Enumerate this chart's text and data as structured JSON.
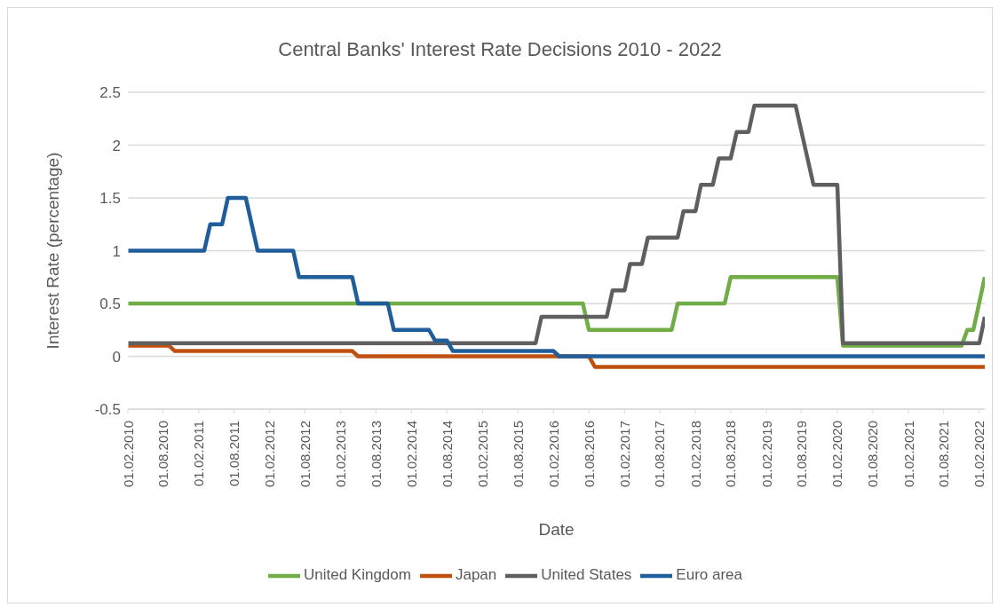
{
  "chart_data": {
    "type": "line",
    "title": "Central Banks' Interest Rate Decisions 2010 - 2022",
    "xlabel": "Date",
    "ylabel": "Interest Rate (percentage)",
    "xlim": [
      "2010-02-01",
      "2022-03-01"
    ],
    "xticks": [
      {
        "value": "2010-02-01",
        "label": "01.02.2010"
      },
      {
        "value": "2010-08-01",
        "label": "01.08.2010"
      },
      {
        "value": "2011-02-01",
        "label": "01.02.2011"
      },
      {
        "value": "2011-08-01",
        "label": "01.08.2011"
      },
      {
        "value": "2012-02-01",
        "label": "01.02.2012"
      },
      {
        "value": "2012-08-01",
        "label": "01.08.2012"
      },
      {
        "value": "2013-02-01",
        "label": "01.02.2013"
      },
      {
        "value": "2013-08-01",
        "label": "01.08.2013"
      },
      {
        "value": "2014-02-01",
        "label": "01.02.2014"
      },
      {
        "value": "2014-08-01",
        "label": "01.08.2014"
      },
      {
        "value": "2015-02-01",
        "label": "01.02.2015"
      },
      {
        "value": "2015-08-01",
        "label": "01.08.2015"
      },
      {
        "value": "2016-02-01",
        "label": "01.02.2016"
      },
      {
        "value": "2016-08-01",
        "label": "01.08.2016"
      },
      {
        "value": "2017-02-01",
        "label": "01.02.2017"
      },
      {
        "value": "2017-08-01",
        "label": "01.08.2017"
      },
      {
        "value": "2018-02-01",
        "label": "01.02.2018"
      },
      {
        "value": "2018-08-01",
        "label": "01.08.2018"
      },
      {
        "value": "2019-02-01",
        "label": "01.02.2019"
      },
      {
        "value": "2019-08-01",
        "label": "01.08.2019"
      },
      {
        "value": "2020-02-01",
        "label": "01.02.2020"
      },
      {
        "value": "2020-08-01",
        "label": "01.08.2020"
      },
      {
        "value": "2021-02-01",
        "label": "01.02.2021"
      },
      {
        "value": "2021-08-01",
        "label": "01.08.2021"
      },
      {
        "value": "2022-02-01",
        "label": "01.02.2022"
      }
    ],
    "ylim": [
      -0.5,
      2.5
    ],
    "yticks": [
      -0.5,
      0,
      0.5,
      1,
      1.5,
      2,
      2.5
    ],
    "grid": "y",
    "legend": "bottom",
    "series": [
      {
        "name": "United Kingdom",
        "color": "#70ad47",
        "x": [
          "2010-02",
          "2016-07",
          "2016-08",
          "2017-10",
          "2017-11",
          "2018-07",
          "2018-08",
          "2020-02",
          "2020-03",
          "2021-11",
          "2021-12",
          "2022-01",
          "2022-03"
        ],
        "values": [
          0.5,
          0.5,
          0.25,
          0.25,
          0.5,
          0.5,
          0.75,
          0.75,
          0.1,
          0.1,
          0.25,
          0.25,
          0.75
        ]
      },
      {
        "name": "Japan",
        "color": "#c0500f",
        "x": [
          "2010-02",
          "2010-09",
          "2010-10",
          "2013-04",
          "2013-05",
          "2016-08",
          "2016-09",
          "2022-03"
        ],
        "values": [
          0.1,
          0.1,
          0.05,
          0.05,
          0,
          0,
          -0.1,
          -0.1
        ]
      },
      {
        "name": "United States",
        "color": "#5f5f5f",
        "x": [
          "2010-02",
          "2015-11",
          "2015-12",
          "2016-11",
          "2016-12",
          "2017-02",
          "2017-03",
          "2017-05",
          "2017-06",
          "2017-11",
          "2017-12",
          "2018-02",
          "2018-03",
          "2018-05",
          "2018-06",
          "2018-08",
          "2018-09",
          "2018-11",
          "2018-12",
          "2019-07",
          "2019-10",
          "2020-02",
          "2020-03",
          "2022-02",
          "2022-03"
        ],
        "values": [
          0.125,
          0.125,
          0.375,
          0.375,
          0.625,
          0.625,
          0.875,
          0.875,
          1.125,
          1.125,
          1.375,
          1.375,
          1.625,
          1.625,
          1.875,
          1.875,
          2.125,
          2.125,
          2.375,
          2.375,
          1.625,
          1.625,
          0.125,
          0.125,
          0.375
        ]
      },
      {
        "name": "Euro area",
        "color": "#1f5e9a",
        "x": [
          "2010-02",
          "2011-03",
          "2011-04",
          "2011-06",
          "2011-07",
          "2011-10",
          "2011-12",
          "2012-06",
          "2012-07",
          "2013-04",
          "2013-05",
          "2013-10",
          "2013-11",
          "2014-05",
          "2014-06",
          "2014-08",
          "2014-09",
          "2016-02",
          "2016-03",
          "2022-03"
        ],
        "values": [
          1,
          1,
          1.25,
          1.25,
          1.5,
          1.5,
          1,
          1,
          0.75,
          0.75,
          0.5,
          0.5,
          0.25,
          0.25,
          0.15,
          0.15,
          0.05,
          0.05,
          0,
          0
        ]
      }
    ]
  }
}
